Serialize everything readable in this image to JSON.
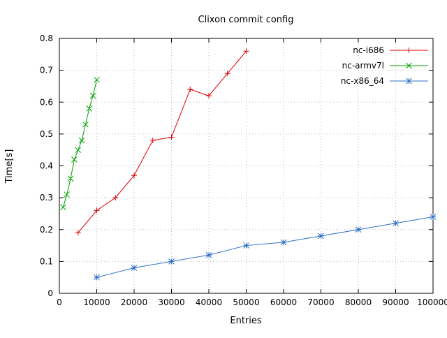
{
  "chart_data": {
    "type": "line",
    "title": "Clixon commit config",
    "xlabel": "Entries",
    "ylabel": "Time[s]",
    "xlim": [
      0,
      100000
    ],
    "ylim": [
      0,
      0.8
    ],
    "xticks": [
      0,
      10000,
      20000,
      30000,
      40000,
      50000,
      60000,
      70000,
      80000,
      90000,
      100000
    ],
    "xtick_labels": [
      "0",
      "10000",
      "20000",
      "30000",
      "40000",
      "50000",
      "60000",
      "70000",
      "80000",
      "90000",
      "100000"
    ],
    "yticks": [
      0,
      0.1,
      0.2,
      0.3,
      0.4,
      0.5,
      0.6,
      0.7,
      0.8
    ],
    "ytick_labels": [
      "0",
      "0.1",
      "0.2",
      "0.3",
      "0.4",
      "0.5",
      "0.6",
      "0.7",
      "0.8"
    ],
    "grid": true,
    "legend_position": "top-right",
    "colors": {
      "grid": "#bdbdbd",
      "border": "#000000"
    },
    "series": [
      {
        "name": "nc-i686",
        "color": "#e00000",
        "marker": "plus",
        "x": [
          5000,
          10000,
          15000,
          20000,
          25000,
          30000,
          35000,
          40000,
          45000,
          50000
        ],
        "y": [
          0.19,
          0.26,
          0.3,
          0.37,
          0.48,
          0.49,
          0.64,
          0.62,
          0.69,
          0.76
        ]
      },
      {
        "name": "nc-armv7l",
        "color": "#00a000",
        "marker": "cross",
        "x": [
          1000,
          2000,
          3000,
          4000,
          5000,
          6000,
          7000,
          8000,
          9000,
          10000
        ],
        "y": [
          0.27,
          0.31,
          0.36,
          0.42,
          0.45,
          0.48,
          0.53,
          0.58,
          0.62,
          0.67
        ]
      },
      {
        "name": "nc-x86_64",
        "color": "#3070c8",
        "marker": "asterisk",
        "x": [
          10000,
          20000,
          30000,
          40000,
          50000,
          60000,
          70000,
          80000,
          90000,
          100000
        ],
        "y": [
          0.05,
          0.08,
          0.1,
          0.12,
          0.15,
          0.16,
          0.18,
          0.2,
          0.22,
          0.24
        ]
      }
    ]
  }
}
